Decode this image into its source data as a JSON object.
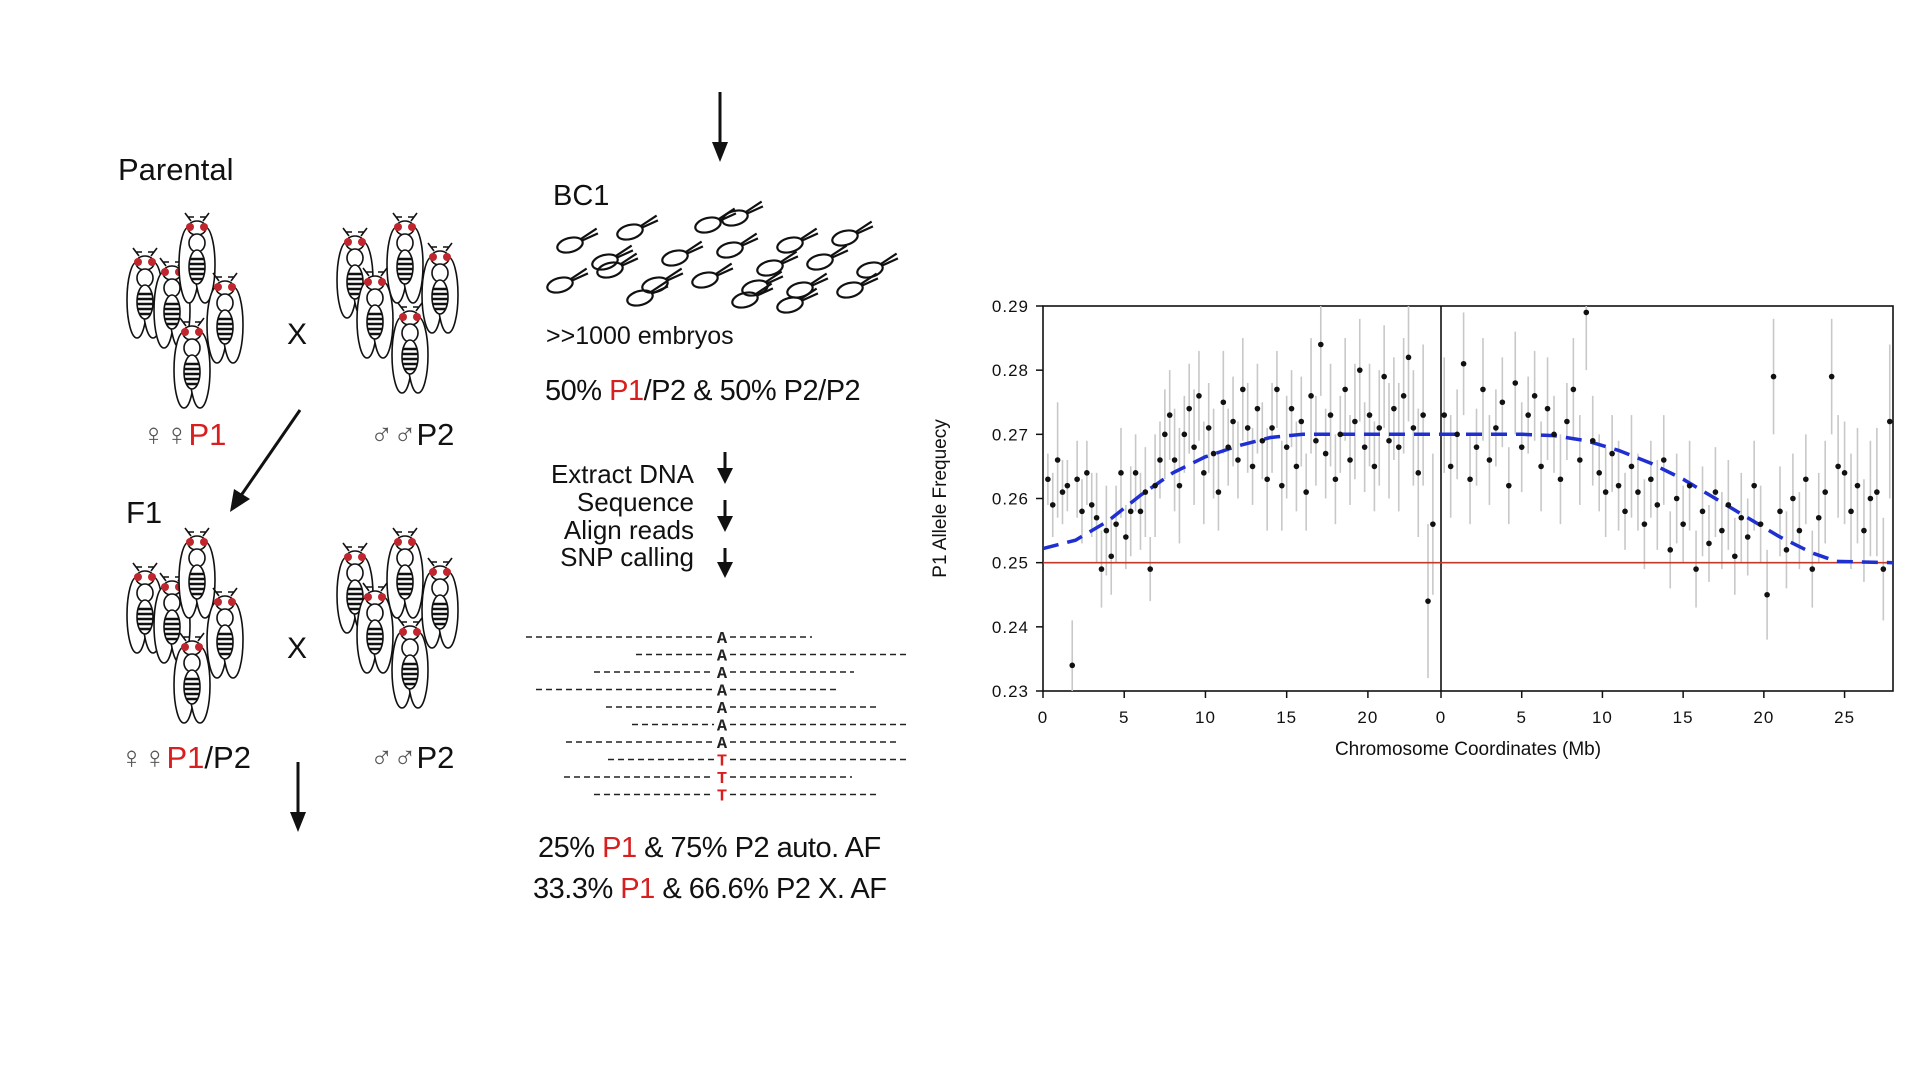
{
  "left": {
    "parental_title": "Parental",
    "cross_symbol": "X",
    "female_symbols": "♀♀",
    "male_symbols": "♂♂",
    "p1": "P1",
    "p2": "P2",
    "f1_title": "F1",
    "f1_female_suffix": "/P2"
  },
  "middle": {
    "bc1_title": "BC1",
    "embryos_label": ">>1000 embryos",
    "bc1_ratio": {
      "pre": "50% ",
      "p1": "P1",
      "post": "/P2 & 50% P2/P2"
    },
    "steps": [
      "Extract DNA",
      "Sequence",
      "Align reads",
      "SNP calling"
    ],
    "alignment": {
      "ref_allele": "A",
      "alt_allele": "T",
      "rows_ref": 7,
      "rows_alt": 3
    },
    "auto_af": {
      "pre": "25% ",
      "p1": "P1",
      "post": " & 75% P2 auto. AF"
    },
    "x_af": {
      "pre": "33.3% ",
      "p1": "P1",
      "post": " & 66.6% P2 X. AF"
    }
  },
  "colors": {
    "accent_red": "#d81e1e",
    "fit_blue": "#1f2fd0",
    "baseline_red": "#c0392b",
    "error_bar": "#c8c8c8"
  },
  "chart_data": {
    "type": "scatter",
    "title": "",
    "xlabel": "Chromosome Coordinates (Mb)",
    "ylabel": "P1 Allele Frequecy",
    "ylim": [
      0.23,
      0.29
    ],
    "yticks": [
      "0.23",
      "0.24",
      "0.25",
      "0.26",
      "0.27",
      "0.28",
      "0.29"
    ],
    "xticks_left": [
      "0",
      "5",
      "10",
      "15",
      "20"
    ],
    "xticks_right": [
      "0",
      "5",
      "10",
      "15",
      "20",
      "25"
    ],
    "segments": [
      {
        "xlim": [
          0,
          24.5
        ]
      },
      {
        "xlim": [
          0,
          28
        ]
      }
    ],
    "baseline": 0.25,
    "fit_curve": {
      "left": [
        [
          0,
          0.2522
        ],
        [
          2,
          0.2535
        ],
        [
          4,
          0.2565
        ],
        [
          6,
          0.2605
        ],
        [
          8,
          0.264
        ],
        [
          10,
          0.2665
        ],
        [
          12,
          0.2682
        ],
        [
          14,
          0.2695
        ],
        [
          16,
          0.27
        ],
        [
          18,
          0.27
        ],
        [
          20,
          0.27
        ],
        [
          22,
          0.27
        ],
        [
          24.5,
          0.27
        ]
      ],
      "right": [
        [
          0,
          0.27
        ],
        [
          3,
          0.27
        ],
        [
          5,
          0.27
        ],
        [
          7,
          0.2698
        ],
        [
          9,
          0.269
        ],
        [
          11,
          0.2675
        ],
        [
          13,
          0.2655
        ],
        [
          15,
          0.263
        ],
        [
          17,
          0.26
        ],
        [
          19,
          0.257
        ],
        [
          21,
          0.254
        ],
        [
          23,
          0.2515
        ],
        [
          24.5,
          0.2502
        ],
        [
          28,
          0.25
        ]
      ]
    },
    "points_left": [
      {
        "x": 0.3,
        "y": 0.263,
        "e": 0.004
      },
      {
        "x": 0.6,
        "y": 0.259,
        "e": 0.005
      },
      {
        "x": 0.9,
        "y": 0.266,
        "e": 0.009
      },
      {
        "x": 1.2,
        "y": 0.261,
        "e": 0.005
      },
      {
        "x": 1.5,
        "y": 0.262,
        "e": 0.004
      },
      {
        "x": 1.8,
        "y": 0.234,
        "e": 0.007
      },
      {
        "x": 2.1,
        "y": 0.263,
        "e": 0.006
      },
      {
        "x": 2.4,
        "y": 0.258,
        "e": 0.005
      },
      {
        "x": 2.7,
        "y": 0.264,
        "e": 0.005
      },
      {
        "x": 3.0,
        "y": 0.259,
        "e": 0.005
      },
      {
        "x": 3.3,
        "y": 0.257,
        "e": 0.007
      },
      {
        "x": 3.6,
        "y": 0.249,
        "e": 0.006
      },
      {
        "x": 3.9,
        "y": 0.255,
        "e": 0.007
      },
      {
        "x": 4.2,
        "y": 0.251,
        "e": 0.006
      },
      {
        "x": 4.5,
        "y": 0.256,
        "e": 0.006
      },
      {
        "x": 4.8,
        "y": 0.264,
        "e": 0.007
      },
      {
        "x": 5.1,
        "y": 0.254,
        "e": 0.005
      },
      {
        "x": 5.4,
        "y": 0.258,
        "e": 0.007
      },
      {
        "x": 5.7,
        "y": 0.264,
        "e": 0.006
      },
      {
        "x": 6.0,
        "y": 0.258,
        "e": 0.006
      },
      {
        "x": 6.3,
        "y": 0.261,
        "e": 0.007
      },
      {
        "x": 6.6,
        "y": 0.249,
        "e": 0.005
      },
      {
        "x": 6.9,
        "y": 0.262,
        "e": 0.008
      },
      {
        "x": 7.2,
        "y": 0.266,
        "e": 0.006
      },
      {
        "x": 7.5,
        "y": 0.27,
        "e": 0.007
      },
      {
        "x": 7.8,
        "y": 0.273,
        "e": 0.007
      },
      {
        "x": 8.1,
        "y": 0.266,
        "e": 0.008
      },
      {
        "x": 8.4,
        "y": 0.262,
        "e": 0.009
      },
      {
        "x": 8.7,
        "y": 0.27,
        "e": 0.006
      },
      {
        "x": 9.0,
        "y": 0.274,
        "e": 0.007
      },
      {
        "x": 9.3,
        "y": 0.268,
        "e": 0.009
      },
      {
        "x": 9.6,
        "y": 0.276,
        "e": 0.007
      },
      {
        "x": 9.9,
        "y": 0.264,
        "e": 0.008
      },
      {
        "x": 10.2,
        "y": 0.271,
        "e": 0.007
      },
      {
        "x": 10.5,
        "y": 0.267,
        "e": 0.007
      },
      {
        "x": 10.8,
        "y": 0.261,
        "e": 0.006
      },
      {
        "x": 11.1,
        "y": 0.275,
        "e": 0.008
      },
      {
        "x": 11.4,
        "y": 0.268,
        "e": 0.006
      },
      {
        "x": 11.7,
        "y": 0.272,
        "e": 0.007
      },
      {
        "x": 12.0,
        "y": 0.266,
        "e": 0.006
      },
      {
        "x": 12.3,
        "y": 0.277,
        "e": 0.008
      },
      {
        "x": 12.6,
        "y": 0.271,
        "e": 0.007
      },
      {
        "x": 12.9,
        "y": 0.265,
        "e": 0.006
      },
      {
        "x": 13.2,
        "y": 0.274,
        "e": 0.007
      },
      {
        "x": 13.5,
        "y": 0.269,
        "e": 0.006
      },
      {
        "x": 13.8,
        "y": 0.263,
        "e": 0.008
      },
      {
        "x": 14.1,
        "y": 0.271,
        "e": 0.007
      },
      {
        "x": 14.4,
        "y": 0.277,
        "e": 0.006
      },
      {
        "x": 14.7,
        "y": 0.262,
        "e": 0.007
      },
      {
        "x": 15.0,
        "y": 0.268,
        "e": 0.008
      },
      {
        "x": 15.3,
        "y": 0.274,
        "e": 0.006
      },
      {
        "x": 15.6,
        "y": 0.265,
        "e": 0.007
      },
      {
        "x": 15.9,
        "y": 0.272,
        "e": 0.007
      },
      {
        "x": 16.2,
        "y": 0.261,
        "e": 0.006
      },
      {
        "x": 16.5,
        "y": 0.276,
        "e": 0.009
      },
      {
        "x": 16.8,
        "y": 0.269,
        "e": 0.007
      },
      {
        "x": 17.1,
        "y": 0.284,
        "e": 0.008
      },
      {
        "x": 17.4,
        "y": 0.267,
        "e": 0.007
      },
      {
        "x": 17.7,
        "y": 0.273,
        "e": 0.008
      },
      {
        "x": 18.0,
        "y": 0.263,
        "e": 0.007
      },
      {
        "x": 18.3,
        "y": 0.27,
        "e": 0.006
      },
      {
        "x": 18.6,
        "y": 0.277,
        "e": 0.008
      },
      {
        "x": 18.9,
        "y": 0.266,
        "e": 0.007
      },
      {
        "x": 19.2,
        "y": 0.272,
        "e": 0.009
      },
      {
        "x": 19.5,
        "y": 0.28,
        "e": 0.008
      },
      {
        "x": 19.8,
        "y": 0.268,
        "e": 0.007
      },
      {
        "x": 20.1,
        "y": 0.273,
        "e": 0.008
      },
      {
        "x": 20.4,
        "y": 0.265,
        "e": 0.007
      },
      {
        "x": 20.7,
        "y": 0.271,
        "e": 0.009
      },
      {
        "x": 21.0,
        "y": 0.279,
        "e": 0.008
      },
      {
        "x": 21.3,
        "y": 0.269,
        "e": 0.009
      },
      {
        "x": 21.6,
        "y": 0.274,
        "e": 0.008
      },
      {
        "x": 21.9,
        "y": 0.268,
        "e": 0.01
      },
      {
        "x": 22.2,
        "y": 0.276,
        "e": 0.009
      },
      {
        "x": 22.5,
        "y": 0.282,
        "e": 0.01
      },
      {
        "x": 22.8,
        "y": 0.271,
        "e": 0.009
      },
      {
        "x": 23.1,
        "y": 0.264,
        "e": 0.01
      },
      {
        "x": 23.4,
        "y": 0.273,
        "e": 0.011
      },
      {
        "x": 23.7,
        "y": 0.244,
        "e": 0.012
      },
      {
        "x": 24.0,
        "y": 0.256,
        "e": 0.011
      }
    ],
    "points_right": [
      {
        "x": 0.2,
        "y": 0.273,
        "e": 0.009
      },
      {
        "x": 0.6,
        "y": 0.265,
        "e": 0.008
      },
      {
        "x": 1.0,
        "y": 0.27,
        "e": 0.007
      },
      {
        "x": 1.4,
        "y": 0.281,
        "e": 0.008
      },
      {
        "x": 1.8,
        "y": 0.263,
        "e": 0.007
      },
      {
        "x": 2.2,
        "y": 0.268,
        "e": 0.006
      },
      {
        "x": 2.6,
        "y": 0.277,
        "e": 0.008
      },
      {
        "x": 3.0,
        "y": 0.266,
        "e": 0.007
      },
      {
        "x": 3.4,
        "y": 0.271,
        "e": 0.006
      },
      {
        "x": 3.8,
        "y": 0.275,
        "e": 0.007
      },
      {
        "x": 4.2,
        "y": 0.262,
        "e": 0.006
      },
      {
        "x": 4.6,
        "y": 0.278,
        "e": 0.008
      },
      {
        "x": 5.0,
        "y": 0.268,
        "e": 0.007
      },
      {
        "x": 5.4,
        "y": 0.273,
        "e": 0.006
      },
      {
        "x": 5.8,
        "y": 0.276,
        "e": 0.007
      },
      {
        "x": 6.2,
        "y": 0.265,
        "e": 0.007
      },
      {
        "x": 6.6,
        "y": 0.274,
        "e": 0.008
      },
      {
        "x": 7.0,
        "y": 0.27,
        "e": 0.006
      },
      {
        "x": 7.4,
        "y": 0.263,
        "e": 0.007
      },
      {
        "x": 7.8,
        "y": 0.272,
        "e": 0.006
      },
      {
        "x": 8.2,
        "y": 0.277,
        "e": 0.008
      },
      {
        "x": 8.6,
        "y": 0.266,
        "e": 0.007
      },
      {
        "x": 9.0,
        "y": 0.289,
        "e": 0.009
      },
      {
        "x": 9.4,
        "y": 0.269,
        "e": 0.007
      },
      {
        "x": 9.8,
        "y": 0.264,
        "e": 0.006
      },
      {
        "x": 10.2,
        "y": 0.261,
        "e": 0.007
      },
      {
        "x": 10.6,
        "y": 0.267,
        "e": 0.006
      },
      {
        "x": 11.0,
        "y": 0.262,
        "e": 0.007
      },
      {
        "x": 11.4,
        "y": 0.258,
        "e": 0.006
      },
      {
        "x": 11.8,
        "y": 0.265,
        "e": 0.008
      },
      {
        "x": 12.2,
        "y": 0.261,
        "e": 0.006
      },
      {
        "x": 12.6,
        "y": 0.256,
        "e": 0.007
      },
      {
        "x": 13.0,
        "y": 0.263,
        "e": 0.006
      },
      {
        "x": 13.4,
        "y": 0.259,
        "e": 0.007
      },
      {
        "x": 13.8,
        "y": 0.266,
        "e": 0.007
      },
      {
        "x": 14.2,
        "y": 0.252,
        "e": 0.006
      },
      {
        "x": 14.6,
        "y": 0.26,
        "e": 0.007
      },
      {
        "x": 15.0,
        "y": 0.256,
        "e": 0.006
      },
      {
        "x": 15.4,
        "y": 0.262,
        "e": 0.007
      },
      {
        "x": 15.8,
        "y": 0.249,
        "e": 0.006
      },
      {
        "x": 16.2,
        "y": 0.258,
        "e": 0.007
      },
      {
        "x": 16.6,
        "y": 0.253,
        "e": 0.006
      },
      {
        "x": 17.0,
        "y": 0.261,
        "e": 0.007
      },
      {
        "x": 17.4,
        "y": 0.255,
        "e": 0.006
      },
      {
        "x": 17.8,
        "y": 0.259,
        "e": 0.007
      },
      {
        "x": 18.2,
        "y": 0.251,
        "e": 0.006
      },
      {
        "x": 18.6,
        "y": 0.257,
        "e": 0.007
      },
      {
        "x": 19.0,
        "y": 0.254,
        "e": 0.006
      },
      {
        "x": 19.4,
        "y": 0.262,
        "e": 0.007
      },
      {
        "x": 19.8,
        "y": 0.256,
        "e": 0.006
      },
      {
        "x": 20.2,
        "y": 0.245,
        "e": 0.007
      },
      {
        "x": 20.6,
        "y": 0.279,
        "e": 0.009
      },
      {
        "x": 21.0,
        "y": 0.258,
        "e": 0.007
      },
      {
        "x": 21.4,
        "y": 0.252,
        "e": 0.006
      },
      {
        "x": 21.8,
        "y": 0.26,
        "e": 0.007
      },
      {
        "x": 22.2,
        "y": 0.255,
        "e": 0.006
      },
      {
        "x": 22.6,
        "y": 0.263,
        "e": 0.007
      },
      {
        "x": 23.0,
        "y": 0.249,
        "e": 0.006
      },
      {
        "x": 23.4,
        "y": 0.257,
        "e": 0.007
      },
      {
        "x": 23.8,
        "y": 0.261,
        "e": 0.008
      },
      {
        "x": 24.2,
        "y": 0.279,
        "e": 0.009
      },
      {
        "x": 24.6,
        "y": 0.265,
        "e": 0.008
      },
      {
        "x": 25.0,
        "y": 0.264,
        "e": 0.008
      },
      {
        "x": 25.4,
        "y": 0.258,
        "e": 0.009
      },
      {
        "x": 25.8,
        "y": 0.262,
        "e": 0.009
      },
      {
        "x": 26.2,
        "y": 0.255,
        "e": 0.008
      },
      {
        "x": 26.6,
        "y": 0.26,
        "e": 0.009
      },
      {
        "x": 27.0,
        "y": 0.261,
        "e": 0.01
      },
      {
        "x": 27.4,
        "y": 0.249,
        "e": 0.008
      },
      {
        "x": 27.8,
        "y": 0.272,
        "e": 0.012
      }
    ]
  }
}
